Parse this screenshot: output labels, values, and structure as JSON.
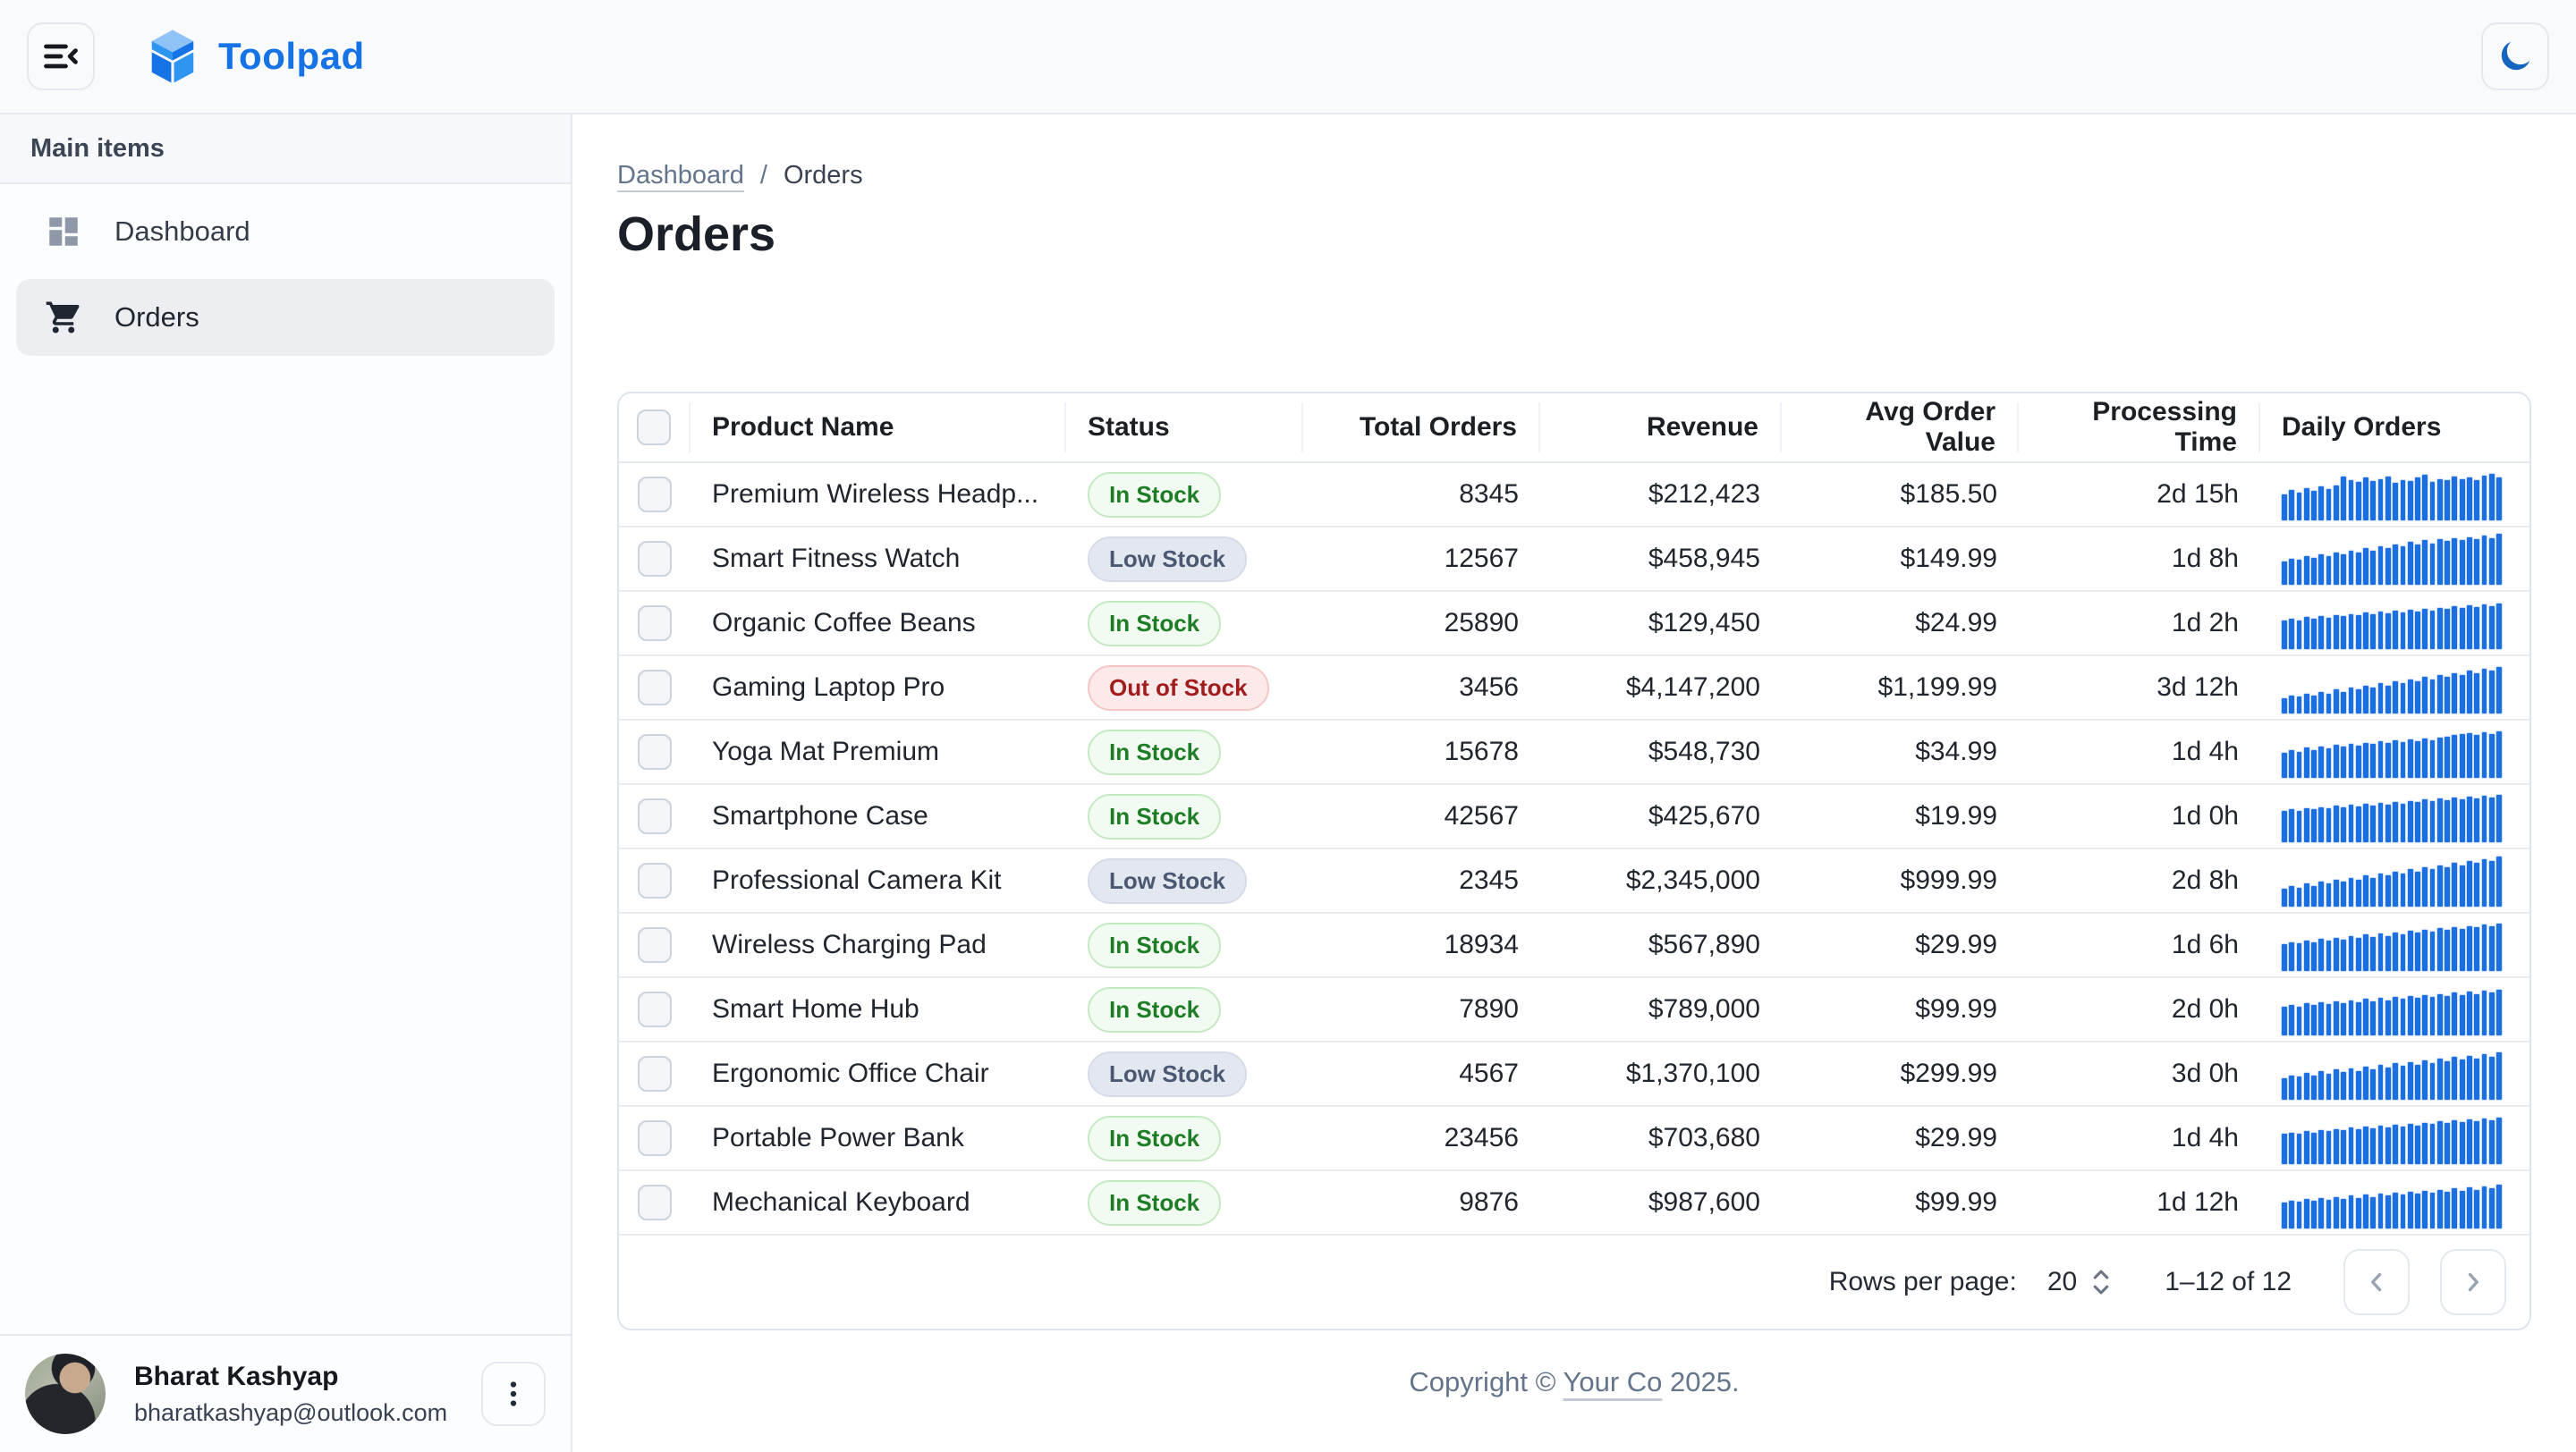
{
  "header": {
    "brand": "Toolpad"
  },
  "icons": {
    "menu": "menu-collapse-icon",
    "logo": "toolpad-cube-logo",
    "theme": "moon-icon",
    "dashboard": "dashboard-grid-icon",
    "orders": "shopping-cart-icon",
    "user_menu": "kebab-menu-icon",
    "rows_stepper": "up-down-arrows-icon",
    "prev": "chevron-left-icon",
    "next": "chevron-right-icon"
  },
  "colors": {
    "brand_blue": "#1673E6",
    "moon_blue": "#1565C0",
    "spark_bar": "#1C6FE0",
    "chip_in_text": "#1D7D24",
    "chip_low_text": "#4A5872",
    "chip_out_text": "#A11C1C",
    "topbar_bg": "#F8FAFC",
    "border": "#E5EAF1"
  },
  "sidebar": {
    "section_label": "Main items",
    "items": [
      {
        "label": "Dashboard",
        "selected": false
      },
      {
        "label": "Orders",
        "selected": true
      }
    ],
    "user": {
      "name": "Bharat Kashyap",
      "email": "bharatkashyap@outlook.com"
    }
  },
  "breadcrumb": {
    "parent": "Dashboard",
    "separator": "/",
    "current": "Orders"
  },
  "page": {
    "title": "Orders"
  },
  "table": {
    "columns": [
      "Product Name",
      "Status",
      "Total Orders",
      "Revenue",
      "Avg Order Value",
      "Processing Time",
      "Daily Orders"
    ],
    "rows": [
      {
        "name": "Premium Wireless Headp...",
        "status": "In Stock",
        "status_type": "in",
        "total": "8345",
        "revenue": "$212,423",
        "avg": "$185.50",
        "time": "2d 15h",
        "spark": [
          50,
          58,
          54,
          62,
          57,
          65,
          60,
          68,
          85,
          78,
          74,
          82,
          76,
          80,
          84,
          72,
          78,
          76,
          82,
          88,
          74,
          80,
          77,
          84,
          79,
          83,
          77,
          86,
          90,
          82
        ]
      },
      {
        "name": "Smart Fitness Watch",
        "status": "Low Stock",
        "status_type": "low",
        "total": "12567",
        "revenue": "$458,945",
        "avg": "$149.99",
        "time": "1d 8h",
        "spark": [
          45,
          50,
          48,
          55,
          52,
          58,
          55,
          62,
          58,
          66,
          62,
          70,
          66,
          74,
          70,
          78,
          74,
          82,
          78,
          86,
          80,
          88,
          84,
          90,
          86,
          92,
          88,
          95,
          90,
          98
        ]
      },
      {
        "name": "Organic Coffee Beans",
        "status": "In Stock",
        "status_type": "in",
        "total": "25890",
        "revenue": "$129,450",
        "avg": "$24.99",
        "time": "1d 2h",
        "spark": [
          55,
          58,
          56,
          62,
          59,
          64,
          61,
          66,
          63,
          68,
          65,
          70,
          67,
          72,
          69,
          74,
          71,
          76,
          73,
          78,
          75,
          80,
          77,
          82,
          79,
          84,
          81,
          86,
          83,
          88
        ]
      },
      {
        "name": "Gaming Laptop Pro",
        "status": "Out of Stock",
        "status_type": "out",
        "total": "3456",
        "revenue": "$4,147,200",
        "avg": "$1,199.99",
        "time": "3d 12h",
        "spark": [
          30,
          34,
          32,
          38,
          35,
          42,
          38,
          46,
          42,
          50,
          46,
          54,
          50,
          58,
          54,
          62,
          58,
          66,
          62,
          70,
          66,
          74,
          70,
          78,
          74,
          82,
          78,
          86,
          82,
          90
        ]
      },
      {
        "name": "Yoga Mat Premium",
        "status": "In Stock",
        "status_type": "in",
        "total": "15678",
        "revenue": "$548,730",
        "avg": "$34.99",
        "time": "1d 4h",
        "spark": [
          48,
          53,
          50,
          58,
          54,
          60,
          57,
          63,
          60,
          66,
          62,
          68,
          65,
          70,
          67,
          72,
          69,
          74,
          71,
          76,
          73,
          78,
          80,
          82,
          84,
          86,
          83,
          88,
          85,
          90
        ]
      },
      {
        "name": "Smartphone Case",
        "status": "In Stock",
        "status_type": "in",
        "total": "42567",
        "revenue": "$425,670",
        "avg": "$19.99",
        "time": "1d 0h",
        "spark": [
          60,
          63,
          61,
          66,
          63,
          68,
          65,
          70,
          67,
          72,
          69,
          74,
          71,
          76,
          73,
          78,
          75,
          80,
          77,
          82,
          79,
          84,
          81,
          86,
          83,
          88,
          85,
          90,
          87,
          92
        ]
      },
      {
        "name": "Professional Camera Kit",
        "status": "Low Stock",
        "status_type": "low",
        "total": "2345",
        "revenue": "$2,345,000",
        "avg": "$999.99",
        "time": "2d 8h",
        "spark": [
          35,
          40,
          37,
          44,
          40,
          48,
          44,
          52,
          48,
          56,
          52,
          60,
          56,
          64,
          60,
          68,
          64,
          72,
          68,
          76,
          72,
          80,
          76,
          84,
          80,
          88,
          84,
          92,
          88,
          96
        ]
      },
      {
        "name": "Wireless Charging Pad",
        "status": "In Stock",
        "status_type": "in",
        "total": "18934",
        "revenue": "$567,890",
        "avg": "$29.99",
        "time": "1d 6h",
        "spark": [
          52,
          56,
          53,
          59,
          55,
          62,
          58,
          64,
          60,
          67,
          63,
          70,
          66,
          72,
          68,
          75,
          71,
          78,
          74,
          80,
          76,
          83,
          79,
          85,
          81,
          87,
          84,
          89,
          86,
          91
        ]
      },
      {
        "name": "Smart Home Hub",
        "status": "In Stock",
        "status_type": "in",
        "total": "7890",
        "revenue": "$789,000",
        "avg": "$99.99",
        "time": "2d 0h",
        "spark": [
          55,
          59,
          56,
          62,
          58,
          64,
          60,
          66,
          62,
          68,
          64,
          70,
          66,
          72,
          68,
          74,
          70,
          76,
          72,
          78,
          74,
          80,
          76,
          82,
          78,
          84,
          80,
          86,
          82,
          88
        ]
      },
      {
        "name": "Ergonomic Office Chair",
        "status": "Low Stock",
        "status_type": "low",
        "total": "4567",
        "revenue": "$1,370,100",
        "avg": "$299.99",
        "time": "3d 0h",
        "spark": [
          42,
          47,
          44,
          51,
          47,
          55,
          50,
          58,
          53,
          61,
          56,
          64,
          59,
          67,
          62,
          70,
          65,
          73,
          68,
          76,
          71,
          79,
          74,
          82,
          77,
          85,
          80,
          88,
          83,
          91
        ]
      },
      {
        "name": "Portable Power Bank",
        "status": "In Stock",
        "status_type": "in",
        "total": "23456",
        "revenue": "$703,680",
        "avg": "$29.99",
        "time": "1d 4h",
        "spark": [
          58,
          61,
          59,
          64,
          61,
          66,
          63,
          68,
          65,
          70,
          67,
          72,
          69,
          74,
          71,
          76,
          73,
          78,
          75,
          80,
          77,
          82,
          79,
          84,
          81,
          86,
          83,
          88,
          85,
          90
        ]
      },
      {
        "name": "Mechanical Keyboard",
        "status": "In Stock",
        "status_type": "in",
        "total": "9876",
        "revenue": "$987,600",
        "avg": "$99.99",
        "time": "1d 12h",
        "spark": [
          50,
          54,
          51,
          57,
          53,
          59,
          55,
          61,
          57,
          63,
          59,
          65,
          61,
          67,
          63,
          69,
          65,
          71,
          67,
          73,
          69,
          75,
          71,
          77,
          73,
          79,
          75,
          81,
          77,
          85
        ]
      }
    ]
  },
  "pagination": {
    "rows_per_page_label": "Rows per page:",
    "rows_per_page": "20",
    "range": "1–12 of 12"
  },
  "footer": {
    "prefix": "Copyright © ",
    "link": "Your Co",
    "suffix": " 2025."
  }
}
